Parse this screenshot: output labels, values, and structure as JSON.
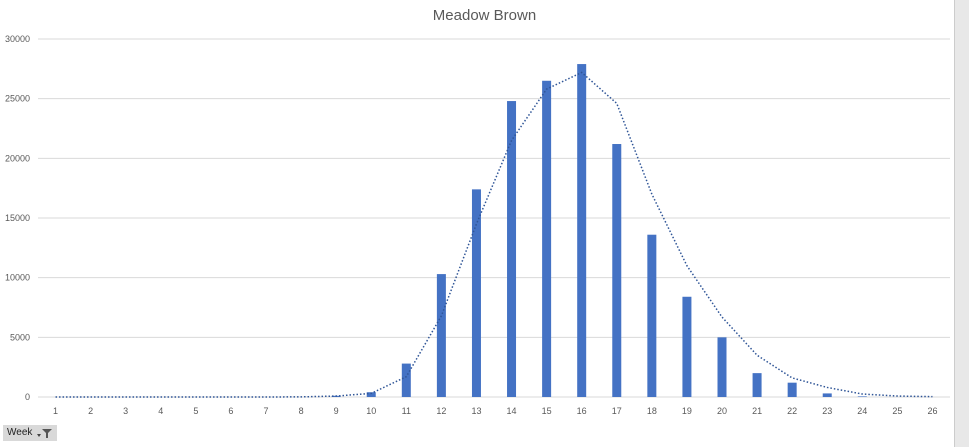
{
  "chart_data": {
    "type": "bar",
    "title": "Meadow Brown",
    "categories": [
      "1",
      "2",
      "3",
      "4",
      "5",
      "6",
      "7",
      "8",
      "9",
      "10",
      "11",
      "12",
      "13",
      "14",
      "15",
      "16",
      "17",
      "18",
      "19",
      "20",
      "21",
      "22",
      "23",
      "24",
      "25",
      "26"
    ],
    "series": [
      {
        "type": "bar",
        "values": [
          0,
          0,
          0,
          0,
          0,
          0,
          0,
          0,
          100,
          400,
          2800,
          10300,
          17400,
          24800,
          26500,
          27900,
          21200,
          13600,
          8400,
          5000,
          2000,
          1200,
          300,
          50,
          0,
          0
        ]
      },
      {
        "type": "line",
        "style": "dotted",
        "values": [
          0,
          0,
          0,
          0,
          0,
          0,
          0,
          10,
          80,
          300,
          1700,
          6800,
          14500,
          21500,
          25800,
          27200,
          24600,
          17000,
          11000,
          6700,
          3500,
          1600,
          800,
          250,
          80,
          30
        ]
      }
    ],
    "ylim": [
      0,
      30000
    ],
    "yticks": [
      0,
      5000,
      10000,
      15000,
      20000,
      25000,
      30000
    ],
    "grid": true,
    "colors": {
      "bar": "#4472c4",
      "trend": "#2f5597",
      "grid": "#d9d9d9"
    }
  },
  "filter": {
    "label": "Week",
    "icon": "filter-icon"
  }
}
